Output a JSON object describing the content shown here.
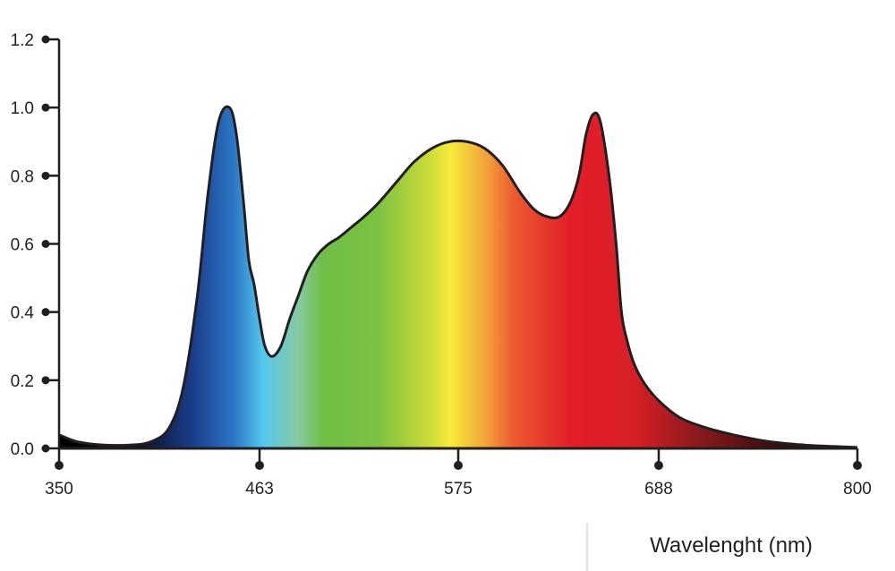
{
  "chart_data": {
    "type": "area",
    "title": "",
    "xlabel": "Wavelenght (nm)",
    "ylabel": "",
    "xlim": [
      350,
      800
    ],
    "ylim": [
      0,
      1.2
    ],
    "x_ticks": [
      350,
      463,
      575,
      688,
      800
    ],
    "x_tick_labels": [
      "350",
      "463",
      "575",
      "688",
      "800"
    ],
    "y_ticks": [
      0,
      0.2,
      0.4,
      0.6,
      0.8,
      1.0,
      1.2
    ],
    "y_tick_labels": [
      "0.0",
      "0.2",
      "0.4",
      "0.6",
      "0.8",
      "1.0",
      "1.2"
    ],
    "grid": false,
    "legend": "none",
    "fill": "spectral gradient (wavelength colors)",
    "series": [
      {
        "x": [
          350,
          360,
          375,
          390,
          402,
          412,
          420,
          428,
          434,
          440,
          446,
          450,
          454,
          457,
          460,
          463,
          466,
          470,
          475,
          480,
          485,
          490,
          496,
          502,
          508,
          515,
          522,
          530,
          540,
          550,
          560,
          570,
          580,
          590,
          600,
          610,
          618,
          625,
          632,
          638,
          643,
          647,
          651,
          655,
          660,
          664,
          667,
          670,
          674,
          680,
          688,
          700,
          715,
          730,
          750,
          770,
          790,
          800
        ],
        "values": [
          0.04,
          0.02,
          0.01,
          0.01,
          0.02,
          0.06,
          0.18,
          0.45,
          0.75,
          0.96,
          1.0,
          0.92,
          0.72,
          0.55,
          0.48,
          0.38,
          0.3,
          0.27,
          0.3,
          0.38,
          0.45,
          0.52,
          0.57,
          0.6,
          0.62,
          0.65,
          0.68,
          0.72,
          0.78,
          0.84,
          0.88,
          0.9,
          0.9,
          0.88,
          0.83,
          0.75,
          0.7,
          0.68,
          0.68,
          0.72,
          0.8,
          0.92,
          0.98,
          0.96,
          0.8,
          0.6,
          0.4,
          0.32,
          0.25,
          0.19,
          0.14,
          0.09,
          0.06,
          0.04,
          0.02,
          0.01,
          0.005,
          0.003
        ]
      }
    ]
  }
}
